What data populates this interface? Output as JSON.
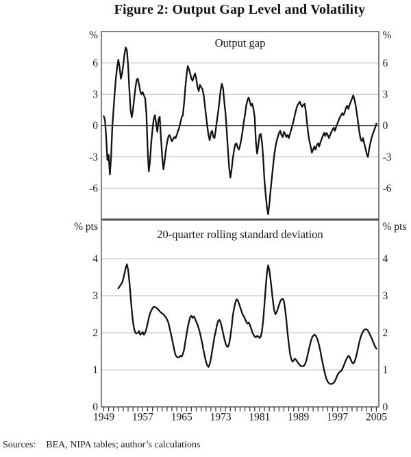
{
  "title": "Figure 2: Output Gap Level and Volatility",
  "sources": {
    "label": "Sources:",
    "text": "BEA, NIPA tables; author’s calculations"
  },
  "x_axis": {
    "start_year": 1949,
    "end_year": 2005,
    "tick_every_years": 1,
    "labels": [
      "1949",
      "1957",
      "1965",
      "1973",
      "1981",
      "1989",
      "1997",
      "2005"
    ],
    "label_every_years": 8
  },
  "colors": {
    "line": "#111111",
    "grid": "#bcbcbc",
    "frame": "#2e2e2e",
    "divider": "#4f4f4f",
    "text": "#1a1a1a"
  },
  "chart_data": [
    {
      "type": "line",
      "panel": "top",
      "title": "Output gap",
      "unit": "%",
      "frequency": "quarterly",
      "start_year": 1949,
      "ylim": [
        -9,
        9
      ],
      "yticks": [
        6,
        3,
        0,
        -3,
        -6
      ],
      "zero_line": true,
      "grid": true,
      "values": [
        0.9,
        0.5,
        -1.2,
        -3.3,
        -2.8,
        -4.7,
        -3.0,
        -0.2,
        1.5,
        3.2,
        4.6,
        5.6,
        6.3,
        5.6,
        4.5,
        5.0,
        5.8,
        6.8,
        7.5,
        7.2,
        5.8,
        3.5,
        1.5,
        0.8,
        1.5,
        2.6,
        3.6,
        4.4,
        4.5,
        3.9,
        3.3,
        3.0,
        3.2,
        2.9,
        2.6,
        1.2,
        -2.2,
        -4.4,
        -3.4,
        -1.6,
        -0.4,
        0.6,
        1.0,
        0.2,
        -0.6,
        0.6,
        0.85,
        -1.2,
        -3.0,
        -4.2,
        -3.4,
        -2.4,
        -1.6,
        -1.1,
        -0.9,
        -1.2,
        -1.5,
        -1.3,
        -1.1,
        -1.2,
        -0.9,
        -0.5,
        -0.2,
        0.3,
        0.8,
        1.0,
        2.2,
        3.6,
        4.8,
        5.7,
        5.4,
        5.0,
        4.5,
        4.3,
        4.7,
        5.0,
        4.5,
        3.7,
        3.3,
        3.9,
        3.7,
        3.5,
        3.0,
        2.0,
        1.0,
        0.0,
        -0.9,
        -1.4,
        -0.7,
        -0.5,
        -1.1,
        -1.2,
        -0.4,
        0.5,
        1.3,
        2.3,
        3.4,
        4.0,
        3.6,
        2.3,
        1.2,
        -0.5,
        -2.3,
        -4.0,
        -5.0,
        -4.2,
        -3.2,
        -2.4,
        -1.8,
        -1.7,
        -2.1,
        -2.3,
        -1.9,
        -1.3,
        -0.6,
        0.3,
        1.0,
        1.9,
        2.4,
        2.7,
        2.3,
        1.9,
        2.1,
        1.6,
        0.8,
        -1.6,
        -2.7,
        -1.9,
        -0.9,
        -0.8,
        -1.6,
        -3.2,
        -5.2,
        -6.6,
        -7.8,
        -8.5,
        -7.6,
        -6.3,
        -5.1,
        -4.0,
        -2.9,
        -2.1,
        -1.5,
        -1.1,
        -0.7,
        -0.5,
        -0.9,
        -1.1,
        -0.6,
        -0.8,
        -1.1,
        -0.9,
        -1.2,
        -0.8,
        -0.4,
        0.0,
        0.5,
        1.0,
        1.5,
        1.9,
        2.1,
        2.3,
        2.0,
        1.8,
        2.0,
        2.1,
        1.4,
        0.3,
        -0.8,
        -1.5,
        -2.0,
        -2.6,
        -2.3,
        -2.0,
        -2.3,
        -1.9,
        -1.7,
        -2.0,
        -1.6,
        -1.3,
        -1.0,
        -0.7,
        -1.0,
        -0.7,
        -0.9,
        -1.2,
        -0.9,
        -0.6,
        -0.4,
        -0.2,
        -0.5,
        -0.1,
        0.2,
        0.5,
        0.8,
        1.0,
        1.2,
        1.0,
        1.3,
        1.7,
        1.9,
        1.6,
        2.0,
        2.3,
        2.6,
        2.9,
        2.5,
        1.9,
        1.1,
        0.3,
        -0.6,
        -1.3,
        -1.5,
        -1.2,
        -1.7,
        -2.2,
        -2.7,
        -3.0,
        -2.3,
        -1.7,
        -1.2,
        -0.8,
        -0.5,
        -0.2,
        0.2
      ]
    },
    {
      "type": "line",
      "panel": "bottom",
      "title": "20-quarter rolling standard deviation",
      "unit": "% pts",
      "frequency": "quarterly",
      "start_year": 1952,
      "ylim": [
        0,
        5
      ],
      "yticks": [
        4,
        3,
        2,
        1,
        0
      ],
      "zero_line": false,
      "grid": true,
      "values": [
        3.2,
        3.25,
        3.3,
        3.35,
        3.45,
        3.6,
        3.75,
        3.85,
        3.7,
        3.4,
        3.0,
        2.6,
        2.3,
        2.1,
        2.0,
        1.98,
        2.0,
        2.05,
        1.95,
        1.98,
        2.02,
        1.95,
        2.0,
        2.1,
        2.25,
        2.4,
        2.52,
        2.6,
        2.66,
        2.7,
        2.7,
        2.68,
        2.65,
        2.62,
        2.58,
        2.55,
        2.52,
        2.5,
        2.46,
        2.42,
        2.36,
        2.28,
        2.15,
        2.0,
        1.85,
        1.68,
        1.52,
        1.4,
        1.35,
        1.33,
        1.35,
        1.38,
        1.36,
        1.42,
        1.55,
        1.75,
        1.95,
        2.15,
        2.3,
        2.42,
        2.46,
        2.4,
        2.44,
        2.38,
        2.3,
        2.22,
        2.12,
        2.0,
        1.86,
        1.7,
        1.52,
        1.36,
        1.22,
        1.12,
        1.08,
        1.15,
        1.3,
        1.5,
        1.7,
        1.9,
        2.05,
        2.2,
        2.32,
        2.35,
        2.28,
        2.15,
        2.0,
        1.85,
        1.72,
        1.64,
        1.62,
        1.7,
        1.9,
        2.15,
        2.45,
        2.65,
        2.8,
        2.9,
        2.88,
        2.8,
        2.7,
        2.6,
        2.5,
        2.45,
        2.38,
        2.3,
        2.25,
        2.28,
        2.22,
        2.12,
        2.02,
        1.95,
        1.9,
        1.88,
        1.92,
        1.9,
        1.86,
        1.9,
        2.05,
        2.35,
        2.75,
        3.2,
        3.6,
        3.82,
        3.7,
        3.45,
        3.15,
        2.85,
        2.62,
        2.5,
        2.55,
        2.65,
        2.75,
        2.85,
        2.9,
        2.92,
        2.85,
        2.65,
        2.35,
        2.0,
        1.7,
        1.45,
        1.3,
        1.22,
        1.25,
        1.3,
        1.27,
        1.22,
        1.17,
        1.13,
        1.1,
        1.1,
        1.1,
        1.13,
        1.2,
        1.33,
        1.48,
        1.62,
        1.75,
        1.86,
        1.92,
        1.95,
        1.93,
        1.87,
        1.78,
        1.65,
        1.5,
        1.32,
        1.16,
        1.0,
        0.86,
        0.75,
        0.68,
        0.64,
        0.62,
        0.62,
        0.63,
        0.65,
        0.7,
        0.78,
        0.86,
        0.92,
        0.95,
        0.97,
        1.02,
        1.1,
        1.18,
        1.27,
        1.33,
        1.38,
        1.35,
        1.27,
        1.2,
        1.17,
        1.22,
        1.32,
        1.45,
        1.6,
        1.75,
        1.88,
        1.97,
        2.03,
        2.08,
        2.1,
        2.09,
        2.06,
        2.0,
        1.93,
        1.86,
        1.78,
        1.7,
        1.62,
        1.57
      ]
    }
  ]
}
